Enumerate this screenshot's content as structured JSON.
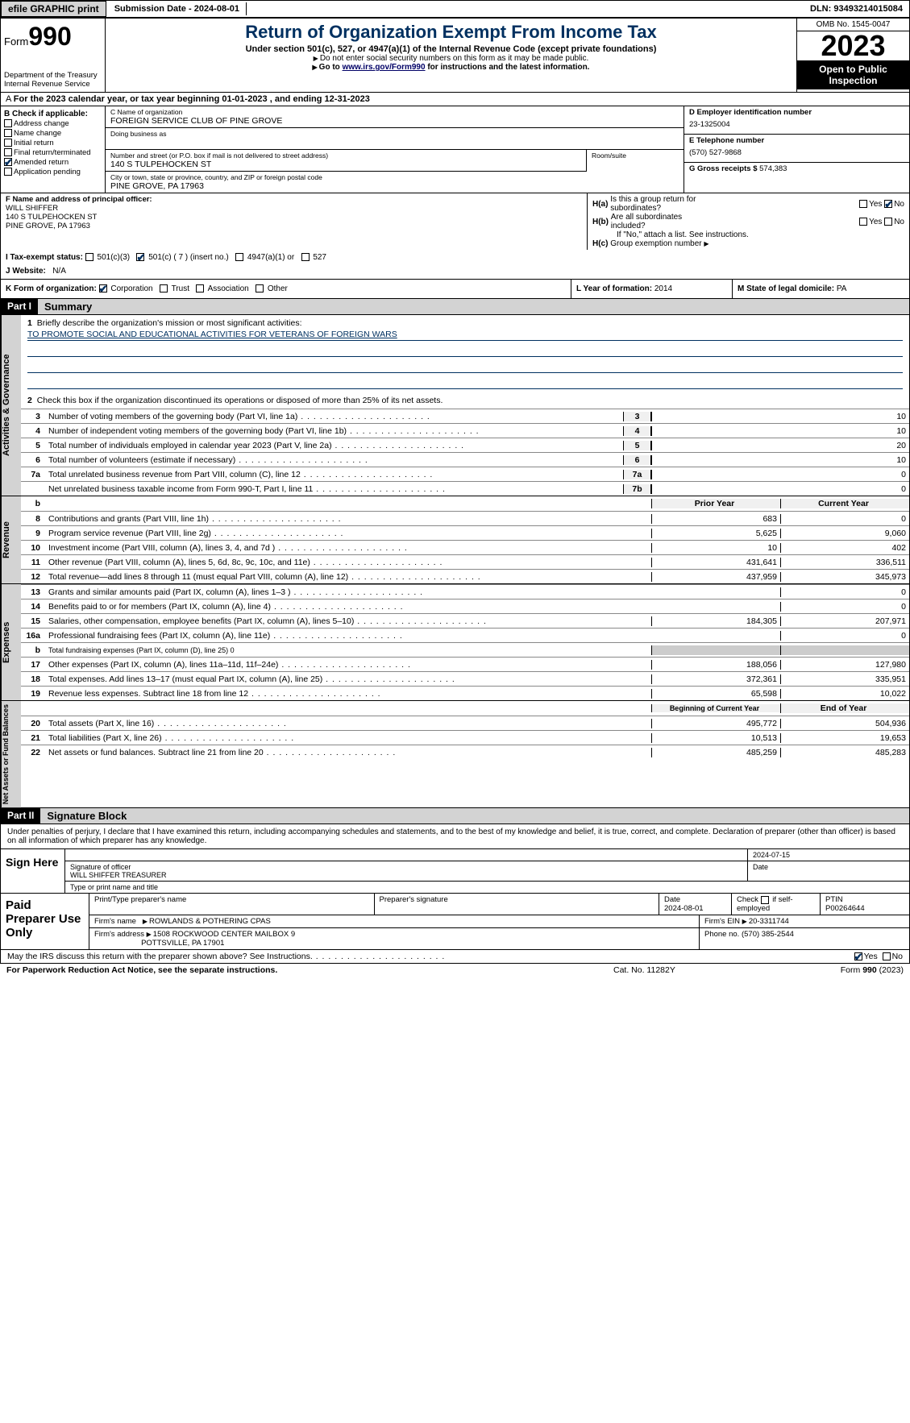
{
  "topbar": {
    "efile": "efile GRAPHIC print",
    "submission": "Submission Date - 2024-08-01",
    "dln": "DLN: 93493214015084"
  },
  "header": {
    "form_label": "Form",
    "form_num": "990",
    "dept": "Department of the Treasury\nInternal Revenue Service",
    "title": "Return of Organization Exempt From Income Tax",
    "sub1": "Under section 501(c), 527, or 4947(a)(1) of the Internal Revenue Code (except private foundations)",
    "sub2": "Do not enter social security numbers on this form as it may be made public.",
    "sub3_pre": "Go to ",
    "sub3_link": "www.irs.gov/Form990",
    "sub3_post": " for instructions and the latest information.",
    "omb": "OMB No. 1545-0047",
    "year": "2023",
    "otp": "Open to Public Inspection"
  },
  "row_a": "For the 2023 calendar year, or tax year beginning 01-01-2023   , and ending 12-31-2023",
  "b": {
    "hd": "B Check if applicable:",
    "items": [
      "Address change",
      "Name change",
      "Initial return",
      "Final return/terminated",
      "Amended return",
      "Application pending"
    ],
    "checked_idx": 4
  },
  "c": {
    "name_lab": "C Name of organization",
    "name_val": "FOREIGN SERVICE CLUB OF PINE GROVE",
    "dba_lab": "Doing business as",
    "addr_lab": "Number and street (or P.O. box if mail is not delivered to street address)",
    "addr_val": "140 S TULPEHOCKEN ST",
    "room_lab": "Room/suite",
    "city_lab": "City or town, state or province, country, and ZIP or foreign postal code",
    "city_val": "PINE GROVE, PA  17963"
  },
  "d": {
    "ein_lab": "D Employer identification number",
    "ein_val": "23-1325004",
    "tel_lab": "E Telephone number",
    "tel_val": "(570) 527-9868",
    "gross_lab": "G Gross receipts $",
    "gross_val": "574,383"
  },
  "f": {
    "lab": "F  Name and address of principal officer:",
    "name": "WILL SHIFFER",
    "addr1": "140 S TULPEHOCKEN ST",
    "addr2": "PINE GROVE, PA  17963"
  },
  "h": {
    "a_lab": "H(a)",
    "a_q1": "Is this a group return for",
    "a_q2": "subordinates?",
    "b_lab": "H(b)",
    "b_q1": "Are all subordinates",
    "b_q2": "included?",
    "b_note": "If \"No,\" attach a list. See instructions.",
    "c_lab": "H(c)",
    "c_q": "Group exemption number"
  },
  "yes": "Yes",
  "no": "No",
  "i": {
    "lab": "I   Tax-exempt status:",
    "o1": "501(c)(3)",
    "o2": "501(c) ( 7 ) (insert no.)",
    "o3": "4947(a)(1) or",
    "o4": "527"
  },
  "j": {
    "lab": "J   Website:",
    "val": "N/A"
  },
  "k": {
    "lab": "K Form of organization:",
    "o1": "Corporation",
    "o2": "Trust",
    "o3": "Association",
    "o4": "Other"
  },
  "l": {
    "lab": "L Year of formation:",
    "val": "2014"
  },
  "m": {
    "lab": "M State of legal domicile:",
    "val": "PA"
  },
  "part1": {
    "hdr": "Part I",
    "title": "Summary"
  },
  "summary": {
    "q1_lab": "1",
    "q1": "Briefly describe the organization's mission or most significant activities:",
    "q1_val": "TO PROMOTE SOCIAL AND EDUCATIONAL ACTIVITIES FOR VETERANS OF FOREIGN WARS",
    "q2_lab": "2",
    "q2": "Check this box      if the organization discontinued its operations or disposed of more than 25% of its net assets.",
    "lines_single": [
      {
        "n": "3",
        "d": "Number of voting members of the governing body (Part VI, line 1a)",
        "box": "3",
        "v": "10"
      },
      {
        "n": "4",
        "d": "Number of independent voting members of the governing body (Part VI, line 1b)",
        "box": "4",
        "v": "10"
      },
      {
        "n": "5",
        "d": "Total number of individuals employed in calendar year 2023 (Part V, line 2a)",
        "box": "5",
        "v": "20"
      },
      {
        "n": "6",
        "d": "Total number of volunteers (estimate if necessary)",
        "box": "6",
        "v": "10"
      },
      {
        "n": "7a",
        "d": "Total unrelated business revenue from Part VIII, column (C), line 12",
        "box": "7a",
        "v": "0"
      },
      {
        "n": "",
        "d": "Net unrelated business taxable income from Form 990-T, Part I, line 11",
        "box": "7b",
        "v": "0"
      }
    ],
    "colhdr_b": "b",
    "colhdr_prior": "Prior Year",
    "colhdr_current": "Current Year",
    "revenue": [
      {
        "n": "8",
        "d": "Contributions and grants (Part VIII, line 1h)",
        "p": "683",
        "c": "0"
      },
      {
        "n": "9",
        "d": "Program service revenue (Part VIII, line 2g)",
        "p": "5,625",
        "c": "9,060"
      },
      {
        "n": "10",
        "d": "Investment income (Part VIII, column (A), lines 3, 4, and 7d )",
        "p": "10",
        "c": "402"
      },
      {
        "n": "11",
        "d": "Other revenue (Part VIII, column (A), lines 5, 6d, 8c, 9c, 10c, and 11e)",
        "p": "431,641",
        "c": "336,511"
      },
      {
        "n": "12",
        "d": "Total revenue—add lines 8 through 11 (must equal Part VIII, column (A), line 12)",
        "p": "437,959",
        "c": "345,973"
      }
    ],
    "expenses": [
      {
        "n": "13",
        "d": "Grants and similar amounts paid (Part IX, column (A), lines 1–3 )",
        "p": "",
        "c": "0"
      },
      {
        "n": "14",
        "d": "Benefits paid to or for members (Part IX, column (A), line 4)",
        "p": "",
        "c": "0"
      },
      {
        "n": "15",
        "d": "Salaries, other compensation, employee benefits (Part IX, column (A), lines 5–10)",
        "p": "184,305",
        "c": "207,971"
      },
      {
        "n": "16a",
        "d": "Professional fundraising fees (Part IX, column (A), line 11e)",
        "p": "",
        "c": "0"
      },
      {
        "n": "b",
        "d": "Total fundraising expenses (Part IX, column (D), line 25) 0",
        "p": "GREY",
        "c": "GREY",
        "small": true
      },
      {
        "n": "17",
        "d": "Other expenses (Part IX, column (A), lines 11a–11d, 11f–24e)",
        "p": "188,056",
        "c": "127,980"
      },
      {
        "n": "18",
        "d": "Total expenses. Add lines 13–17 (must equal Part IX, column (A), line 25)",
        "p": "372,361",
        "c": "335,951"
      },
      {
        "n": "19",
        "d": "Revenue less expenses. Subtract line 18 from line 12",
        "p": "65,598",
        "c": "10,022"
      }
    ],
    "colhdr2_begin": "Beginning of Current Year",
    "colhdr2_end": "End of Year",
    "netassets": [
      {
        "n": "20",
        "d": "Total assets (Part X, line 16)",
        "p": "495,772",
        "c": "504,936"
      },
      {
        "n": "21",
        "d": "Total liabilities (Part X, line 26)",
        "p": "10,513",
        "c": "19,653"
      },
      {
        "n": "22",
        "d": "Net assets or fund balances. Subtract line 21 from line 20",
        "p": "485,259",
        "c": "485,283"
      }
    ]
  },
  "vtabs": {
    "gov": "Activities & Governance",
    "rev": "Revenue",
    "exp": "Expenses",
    "net": "Net Assets or Fund Balances"
  },
  "part2": {
    "hdr": "Part II",
    "title": "Signature Block"
  },
  "sig": {
    "penalty": "Under penalties of perjury, I declare that I have examined this return, including accompanying schedules and statements, and to the best of my knowledge and belief, it is true, correct, and complete. Declaration of preparer (other than officer) is based on all information of which preparer has any knowledge.",
    "sign_here": "Sign Here",
    "sig_officer": "Signature of officer",
    "date": "Date",
    "date_val": "2024-07-15",
    "name_title": "WILL SHIFFER  TREASURER",
    "type_print": "Type or print name and title",
    "paid": "Paid Preparer Use Only",
    "prep_name_lab": "Print/Type preparer's name",
    "prep_sig_lab": "Preparer's signature",
    "prep_date_lab": "Date",
    "prep_date": "2024-08-01",
    "check_self": "Check       if self-employed",
    "ptin_lab": "PTIN",
    "ptin": "P00264644",
    "firm_name_lab": "Firm's name",
    "firm_name": "ROWLANDS & POTHERING CPAS",
    "firm_ein_lab": "Firm's EIN",
    "firm_ein": "20-3311744",
    "firm_addr_lab": "Firm's address",
    "firm_addr1": "1508 ROCKWOOD CENTER MAILBOX 9",
    "firm_addr2": "POTTSVILLE, PA  17901",
    "phone_lab": "Phone no.",
    "phone": "(570) 385-2544"
  },
  "discuss": "May the IRS discuss this return with the preparer shown above? See Instructions.",
  "footer": {
    "l": "For Paperwork Reduction Act Notice, see the separate instructions.",
    "m": "Cat. No. 11282Y",
    "r_pre": "Form ",
    "r_form": "990",
    "r_post": " (2023)"
  }
}
